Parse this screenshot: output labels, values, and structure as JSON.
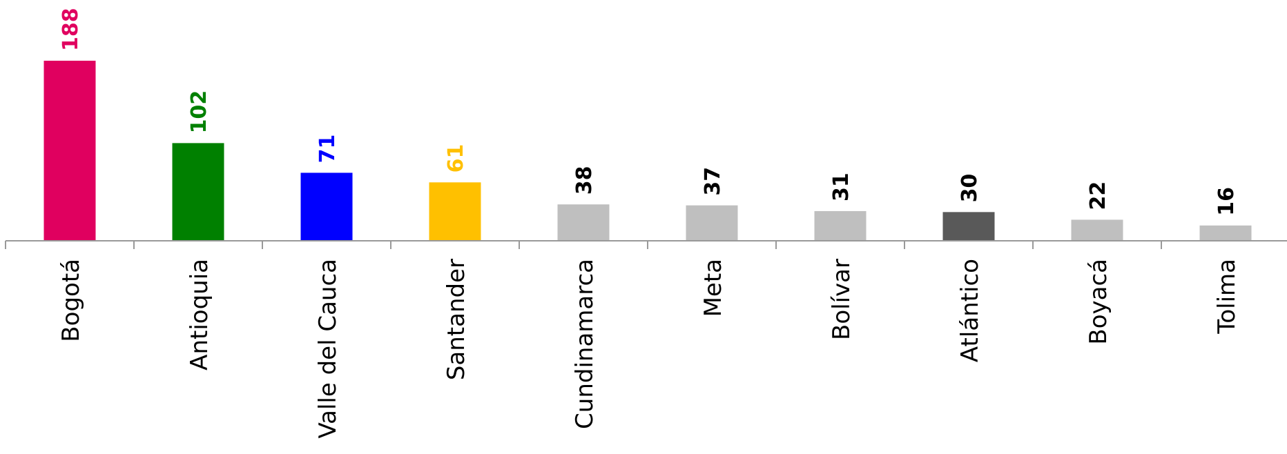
{
  "chart_data": {
    "type": "bar",
    "title": "",
    "xlabel": "",
    "ylabel": "",
    "ylim": [
      0,
      188
    ],
    "grid": false,
    "categories": [
      "Bogotá",
      "Antioquia",
      "Valle del Cauca",
      "Santander",
      "Cundinamarca",
      "Meta",
      "Bolívar",
      "Atlántico",
      "Boyacá",
      "Tolima"
    ],
    "values": [
      188,
      102,
      71,
      61,
      38,
      37,
      31,
      30,
      22,
      16
    ],
    "bar_colors": [
      "#e0005f",
      "#008000",
      "#0000ff",
      "#ffc000",
      "#bfbfbf",
      "#bfbfbf",
      "#bfbfbf",
      "#595959",
      "#bfbfbf",
      "#bfbfbf"
    ],
    "label_colors": [
      "#e0005f",
      "#008000",
      "#0000ff",
      "#ffc000",
      "#000000",
      "#000000",
      "#000000",
      "#000000",
      "#000000",
      "#000000"
    ]
  }
}
